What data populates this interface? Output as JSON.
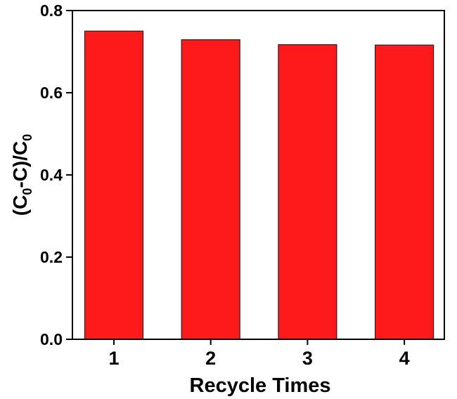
{
  "chart_data": {
    "type": "bar",
    "x_label": "Recycle Times",
    "y_label": [
      "(C",
      "0",
      "-C)/C",
      "0"
    ],
    "categories": [
      "1",
      "2",
      "3",
      "4"
    ],
    "values": [
      0.75,
      0.729,
      0.717,
      0.716
    ],
    "color": "#fe1a1a",
    "ylim": [
      0,
      0.8
    ],
    "yticks": [
      {
        "value": 0,
        "label": "0.0"
      },
      0.2,
      0.4,
      0.6,
      0.8
    ],
    "grid": false
  }
}
